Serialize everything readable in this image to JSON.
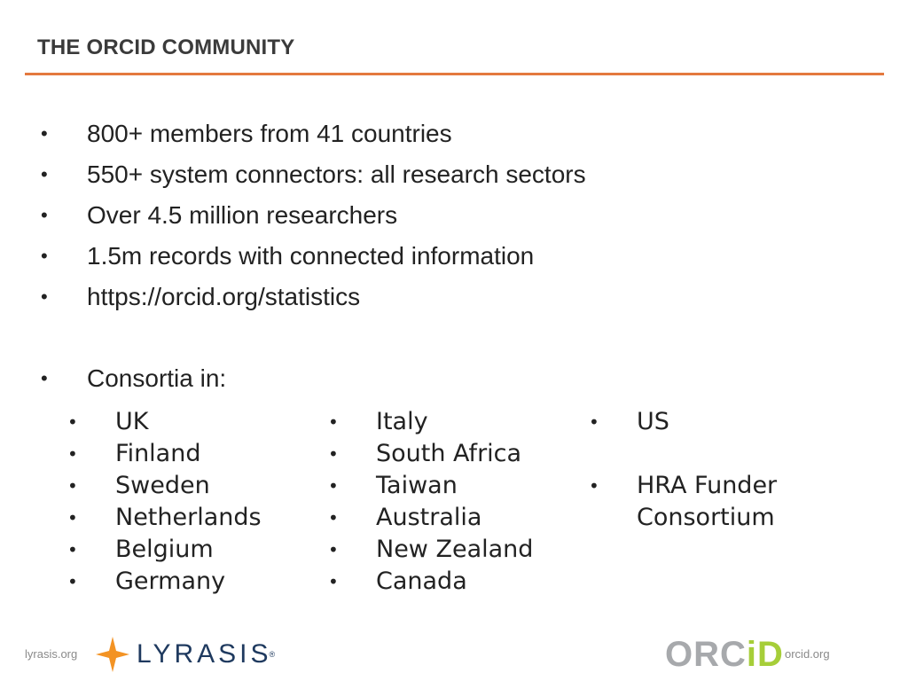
{
  "title": "THE ORCID COMMUNITY",
  "bullets": [
    "800+ members from 41 countries",
    "550+ system connectors: all research sectors",
    "Over 4.5 million researchers",
    "1.5m records with connected information",
    "https://orcid.org/statistics",
    "Consortia in:"
  ],
  "bullet_char": "•",
  "consortia": {
    "col1": [
      "UK",
      "Finland",
      "Sweden",
      "Netherlands",
      "Belgium",
      "Germany"
    ],
    "col2": [
      "Italy",
      "South Africa",
      "Taiwan",
      "Australia",
      "New Zealand",
      "Canada"
    ],
    "col3": [
      "US",
      "",
      "HRA Funder",
      "Consortium"
    ]
  },
  "footer": {
    "left_url": "lyrasis.org",
    "right_url": "orcid.org",
    "lyrasis_logo_text": "LYRASIS",
    "lyrasis_reg": "®",
    "orcid_logo_text_a": "ORC",
    "orcid_logo_text_b": "iD"
  },
  "colors": {
    "accent_rule": "#e4793f",
    "lyrasis_star": "#f39324",
    "lyrasis_blue": "#1f3a5f",
    "orcid_green": "#a6ce39",
    "orcid_grey": "#a7a9ac"
  }
}
